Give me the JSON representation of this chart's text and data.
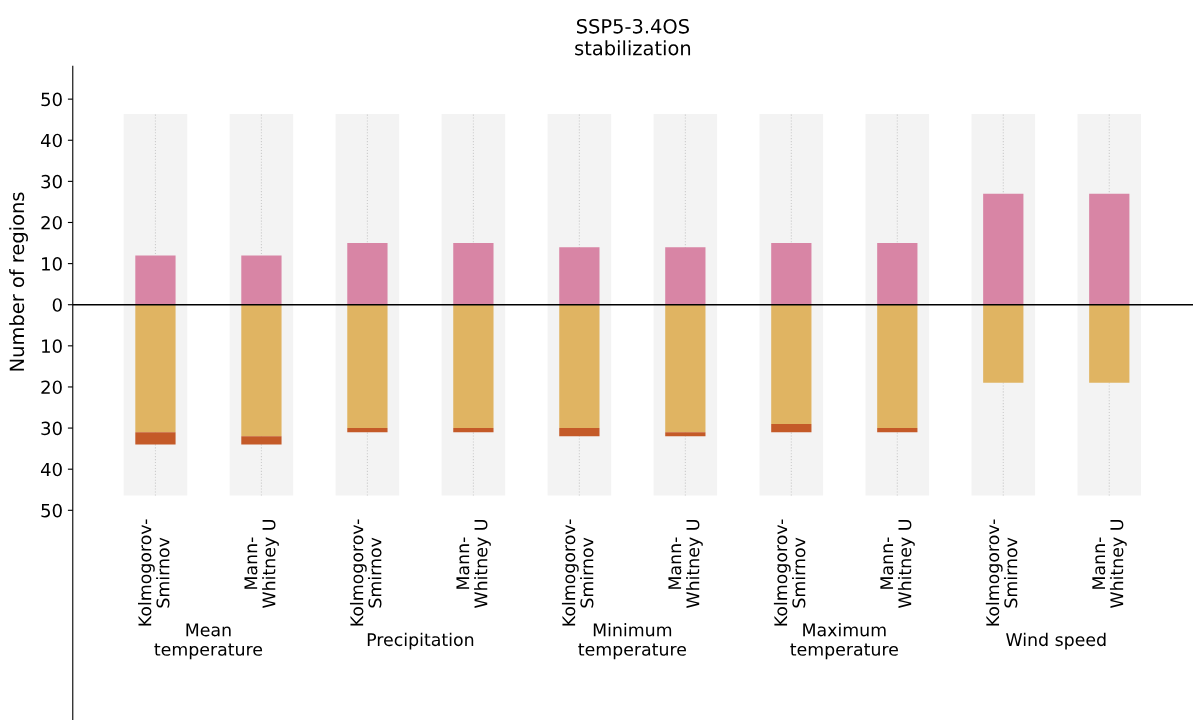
{
  "chart_data": {
    "type": "bar",
    "title": "SSP5-3.4OS\nstabilization",
    "ylabel": "Number of regions",
    "categories": [
      "Kolmogorov-\nSmirnov",
      "Mann-\nWhitney U",
      "Kolmogorov-\nSmirnov",
      "Mann-\nWhitney U",
      "Kolmogorov-\nSmirnov",
      "Mann-\nWhitney U",
      "Kolmogorov-\nSmirnov",
      "Mann-\nWhitney U",
      "Kolmogorov-\nSmirnov",
      "Mann-\nWhitney U"
    ],
    "annotations": [
      "Mean\ntemperature",
      "Precipitation",
      "Minimum\ntemperature",
      "Maximum\ntemperature",
      "Wind speed"
    ],
    "stacked": true,
    "series": [
      {
        "color": "#d885a5",
        "values": [
          12,
          12,
          15,
          15,
          14,
          14,
          15,
          15,
          27,
          27
        ]
      },
      {
        "color": "#e0b462",
        "values": [
          -31,
          -32,
          -30,
          -30,
          -30,
          -31,
          -29,
          -30,
          -19,
          -19
        ]
      },
      {
        "color": "#c45a28",
        "values": [
          -3,
          -2,
          -1,
          -1,
          -2,
          -1,
          -2,
          -1,
          0,
          0
        ]
      }
    ],
    "ylim": [
      -101,
      58
    ],
    "yticks": [
      {
        "value": -50,
        "label": "50"
      },
      {
        "value": -40,
        "label": "40"
      },
      {
        "value": -30,
        "label": "30"
      },
      {
        "value": -20,
        "label": "20"
      },
      {
        "value": -10,
        "label": "10"
      },
      0,
      10,
      20,
      30,
      40,
      50
    ],
    "ref_lines": [
      {
        "axis": "y",
        "value": 0,
        "color": "#000000"
      }
    ],
    "grid": false
  }
}
